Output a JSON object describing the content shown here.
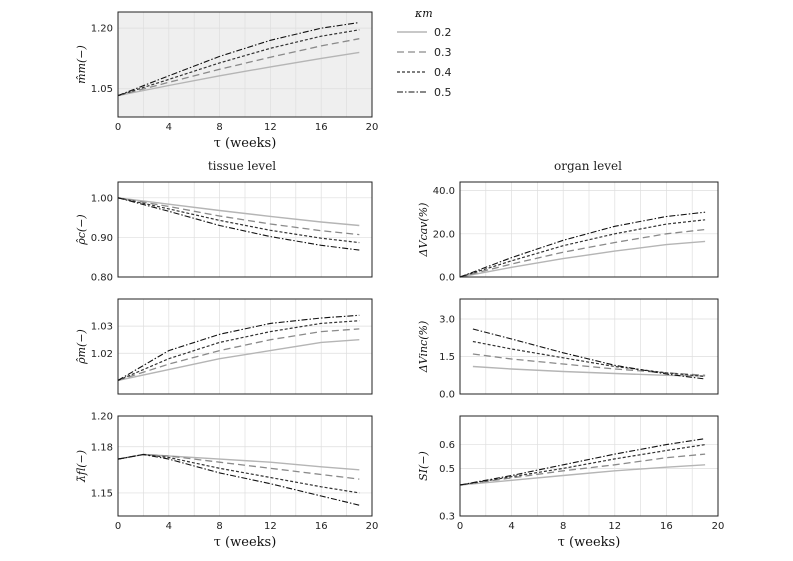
{
  "sections": {
    "left": "tissue level",
    "right": "organ level"
  },
  "legend": {
    "title": "κm",
    "entries": [
      {
        "label": "0.2",
        "color": "#b5b5b5",
        "dash": "solid"
      },
      {
        "label": "0.3",
        "color": "#8a8a8a",
        "dash": "long-dash"
      },
      {
        "label": "0.4",
        "color": "#333333",
        "dash": "short-dash"
      },
      {
        "label": "0.5",
        "color": "#111111",
        "dash": "dash-dot"
      }
    ]
  },
  "chart_data": [
    {
      "type": "line",
      "panel": "top",
      "xlabel": "τ (weeks)",
      "ylabel": "m̂m(−)",
      "xlim": [
        0,
        20
      ],
      "ylim": [
        0.98,
        1.24
      ],
      "xticks": [
        "0",
        "4",
        "8",
        "12",
        "16",
        "20"
      ],
      "yticks": [
        "1.05",
        "1.20"
      ],
      "grid": true,
      "x": [
        0,
        4,
        8,
        12,
        16,
        19
      ],
      "series": [
        {
          "name": "0.2",
          "values": [
            1.033,
            1.058,
            1.082,
            1.104,
            1.125,
            1.14
          ]
        },
        {
          "name": "0.3",
          "values": [
            1.033,
            1.066,
            1.098,
            1.128,
            1.156,
            1.174
          ]
        },
        {
          "name": "0.4",
          "values": [
            1.033,
            1.073,
            1.114,
            1.15,
            1.18,
            1.196
          ]
        },
        {
          "name": "0.5",
          "values": [
            1.033,
            1.082,
            1.13,
            1.17,
            1.2,
            1.214
          ]
        }
      ]
    },
    {
      "type": "line",
      "panel": "tissue-1",
      "xlabel": "",
      "ylabel": "ρ̂c(−)",
      "xlim": [
        0,
        20
      ],
      "ylim": [
        0.8,
        1.04
      ],
      "xticks": [],
      "yticks": [
        "0.80",
        "0.90",
        "1.00"
      ],
      "grid": true,
      "x": [
        0,
        4,
        8,
        12,
        16,
        19
      ],
      "series": [
        {
          "name": "0.2",
          "values": [
            1.0,
            0.984,
            0.968,
            0.953,
            0.939,
            0.93
          ]
        },
        {
          "name": "0.3",
          "values": [
            1.0,
            0.978,
            0.954,
            0.934,
            0.917,
            0.907
          ]
        },
        {
          "name": "0.4",
          "values": [
            1.0,
            0.972,
            0.943,
            0.918,
            0.898,
            0.887
          ]
        },
        {
          "name": "0.5",
          "values": [
            1.0,
            0.966,
            0.93,
            0.902,
            0.88,
            0.868
          ]
        }
      ]
    },
    {
      "type": "line",
      "panel": "tissue-2",
      "xlabel": "",
      "ylabel": "ρ̂m(−)",
      "xlim": [
        0,
        20
      ],
      "ylim": [
        1.005,
        1.04
      ],
      "xticks": [],
      "yticks": [
        "1.02",
        "1.03"
      ],
      "grid": true,
      "x": [
        0,
        4,
        8,
        12,
        16,
        19
      ],
      "series": [
        {
          "name": "0.2",
          "values": [
            1.01,
            1.014,
            1.018,
            1.021,
            1.024,
            1.025
          ]
        },
        {
          "name": "0.3",
          "values": [
            1.01,
            1.016,
            1.021,
            1.025,
            1.028,
            1.029
          ]
        },
        {
          "name": "0.4",
          "values": [
            1.01,
            1.018,
            1.024,
            1.028,
            1.031,
            1.032
          ]
        },
        {
          "name": "0.5",
          "values": [
            1.01,
            1.021,
            1.027,
            1.031,
            1.033,
            1.034
          ]
        }
      ]
    },
    {
      "type": "line",
      "panel": "tissue-3",
      "xlabel": "τ (weeks)",
      "ylabel": "λ̄fl(−)",
      "xlim": [
        0,
        20
      ],
      "ylim": [
        1.135,
        1.2
      ],
      "xticks": [
        "0",
        "4",
        "8",
        "12",
        "16",
        "20"
      ],
      "yticks": [
        "1.15",
        "1.18",
        "1.20"
      ],
      "grid": true,
      "x": [
        0,
        2,
        4,
        8,
        12,
        16,
        19
      ],
      "series": [
        {
          "name": "0.2",
          "values": [
            1.172,
            1.175,
            1.174,
            1.172,
            1.17,
            1.167,
            1.165
          ]
        },
        {
          "name": "0.3",
          "values": [
            1.172,
            1.175,
            1.174,
            1.17,
            1.166,
            1.162,
            1.159
          ]
        },
        {
          "name": "0.4",
          "values": [
            1.172,
            1.175,
            1.173,
            1.166,
            1.16,
            1.154,
            1.15
          ]
        },
        {
          "name": "0.5",
          "values": [
            1.172,
            1.175,
            1.172,
            1.163,
            1.156,
            1.148,
            1.142
          ]
        }
      ]
    },
    {
      "type": "line",
      "panel": "organ-1",
      "xlabel": "",
      "ylabel": "ΔVcav(%)",
      "xlim": [
        0,
        20
      ],
      "ylim": [
        0,
        44
      ],
      "xticks": [],
      "yticks": [
        "0.0",
        "20.0",
        "40.0"
      ],
      "grid": true,
      "x": [
        0,
        4,
        8,
        12,
        16,
        19
      ],
      "series": [
        {
          "name": "0.2",
          "values": [
            0.0,
            4.5,
            8.5,
            12.0,
            15.0,
            16.5
          ]
        },
        {
          "name": "0.3",
          "values": [
            0.0,
            6.0,
            11.5,
            16.0,
            20.0,
            22.0
          ]
        },
        {
          "name": "0.4",
          "values": [
            0.0,
            7.5,
            14.5,
            20.0,
            24.5,
            26.5
          ]
        },
        {
          "name": "0.5",
          "values": [
            0.0,
            9.0,
            17.0,
            23.5,
            28.0,
            30.0
          ]
        }
      ]
    },
    {
      "type": "line",
      "panel": "organ-2",
      "xlabel": "",
      "ylabel": "ΔVinc(%)",
      "xlim": [
        0,
        20
      ],
      "ylim": [
        0,
        3.8
      ],
      "xticks": [],
      "yticks": [
        "0.0",
        "1.5",
        "3.0"
      ],
      "grid": true,
      "x": [
        1,
        4,
        8,
        12,
        16,
        19
      ],
      "series": [
        {
          "name": "0.2",
          "values": [
            1.1,
            1.0,
            0.9,
            0.82,
            0.75,
            0.72
          ]
        },
        {
          "name": "0.3",
          "values": [
            1.6,
            1.4,
            1.2,
            1.0,
            0.85,
            0.75
          ]
        },
        {
          "name": "0.4",
          "values": [
            2.1,
            1.8,
            1.45,
            1.1,
            0.85,
            0.7
          ]
        },
        {
          "name": "0.5",
          "values": [
            2.6,
            2.2,
            1.65,
            1.15,
            0.8,
            0.6
          ]
        }
      ]
    },
    {
      "type": "line",
      "panel": "organ-3",
      "xlabel": "τ (weeks)",
      "ylabel": "SI(−)",
      "xlim": [
        0,
        20
      ],
      "ylim": [
        0.3,
        0.72
      ],
      "xticks": [
        "0",
        "4",
        "8",
        "12",
        "16",
        "20"
      ],
      "yticks": [
        "0.3",
        "0.5",
        "0.6"
      ],
      "grid": true,
      "x": [
        0,
        4,
        8,
        12,
        16,
        19
      ],
      "series": [
        {
          "name": "0.2",
          "values": [
            0.43,
            0.45,
            0.47,
            0.49,
            0.505,
            0.515
          ]
        },
        {
          "name": "0.3",
          "values": [
            0.43,
            0.46,
            0.49,
            0.515,
            0.545,
            0.56
          ]
        },
        {
          "name": "0.4",
          "values": [
            0.43,
            0.465,
            0.5,
            0.54,
            0.575,
            0.6
          ]
        },
        {
          "name": "0.5",
          "values": [
            0.43,
            0.47,
            0.515,
            0.56,
            0.6,
            0.625
          ]
        }
      ]
    }
  ]
}
